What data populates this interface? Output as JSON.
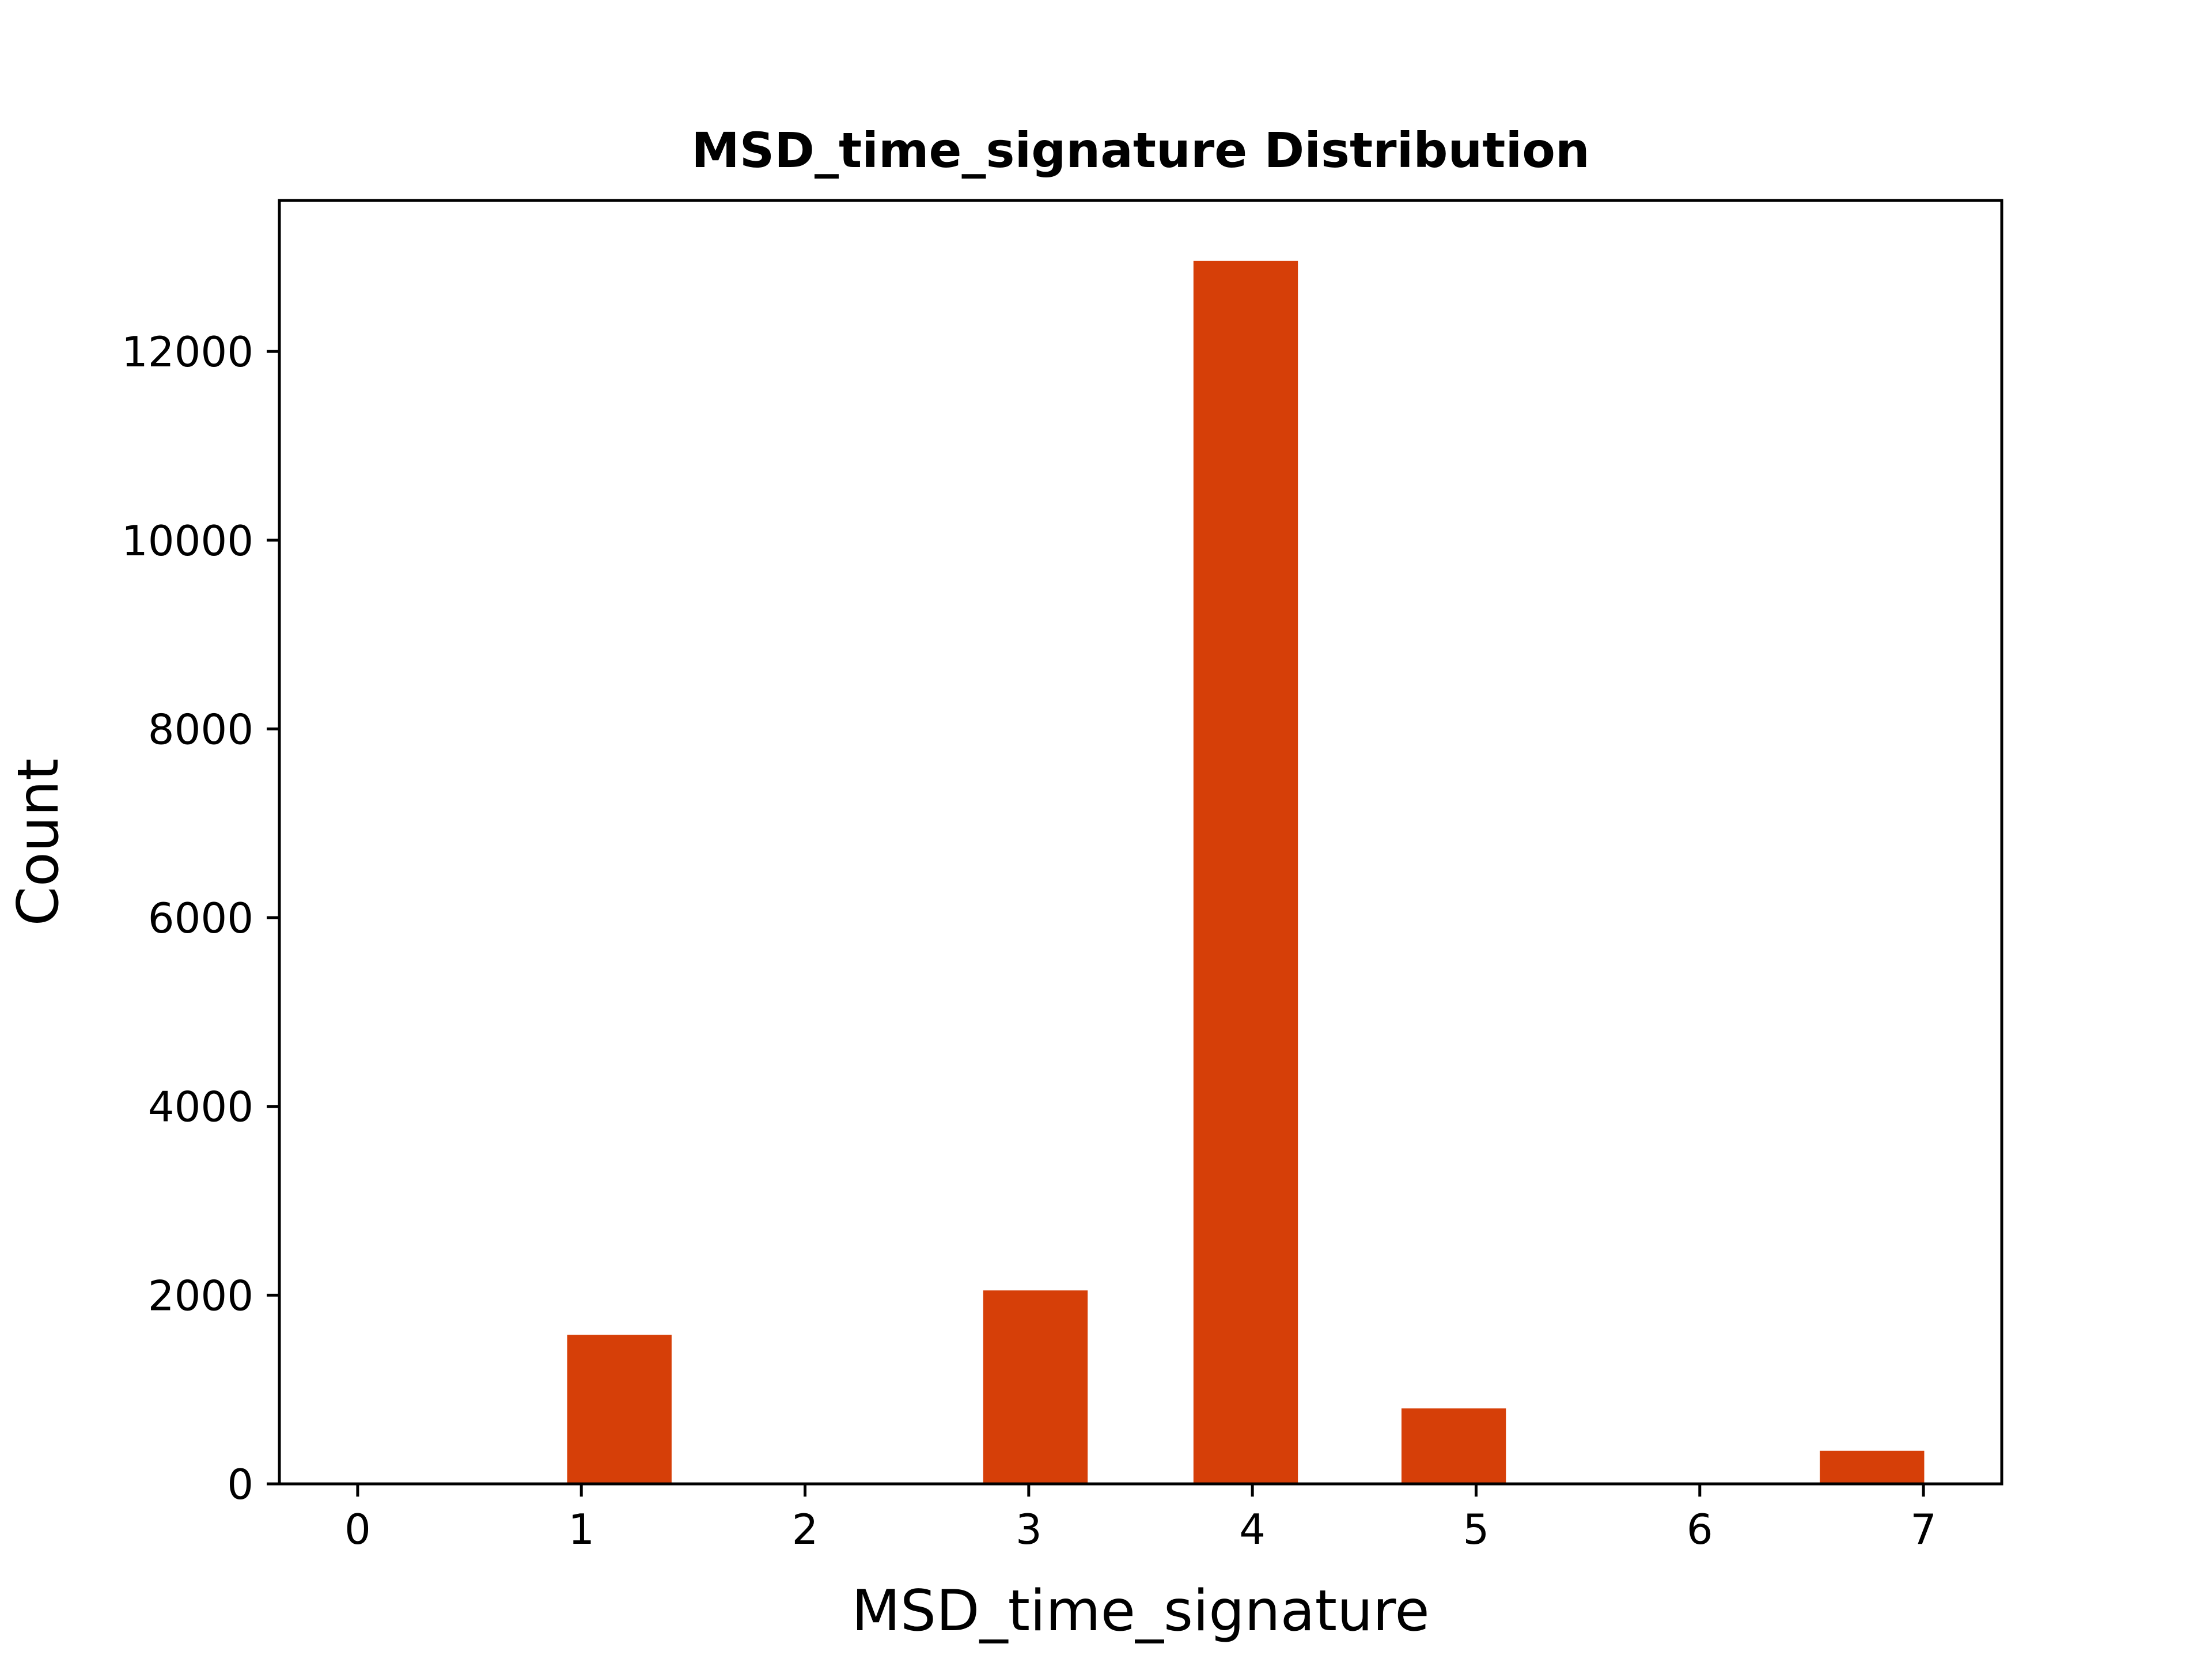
{
  "chart_data": {
    "type": "bar",
    "title": "MSD_time_signature Distribution",
    "xlabel": "MSD_time_signature",
    "ylabel": "Count",
    "xlim": [
      -0.35,
      7.35
    ],
    "ylim": [
      0,
      13600
    ],
    "xticks": [
      0,
      1,
      2,
      3,
      4,
      5,
      6,
      7
    ],
    "yticks": [
      0,
      2000,
      4000,
      6000,
      8000,
      10000,
      12000
    ],
    "bar_width": 0.467,
    "bars": [
      {
        "x": 1.17,
        "value": 1580
      },
      {
        "x": 3.03,
        "value": 2050
      },
      {
        "x": 3.97,
        "value": 12960
      },
      {
        "x": 4.9,
        "value": 800
      },
      {
        "x": 6.77,
        "value": 350
      }
    ],
    "grid": false,
    "bar_color": "#d63f08"
  }
}
